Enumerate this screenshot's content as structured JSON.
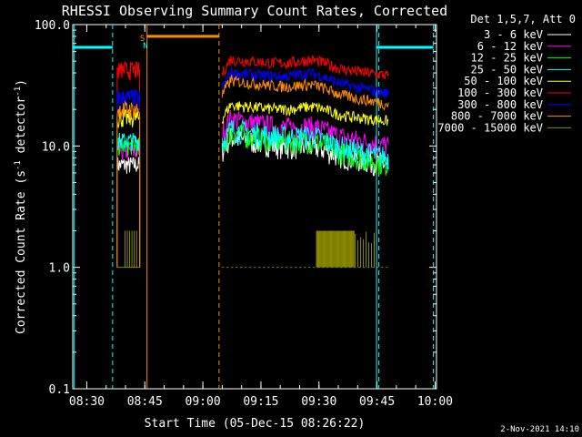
{
  "chart_data": {
    "type": "line",
    "title": "RHESSI Observing Summary Count Rates, Corrected",
    "xlabel": "Start Time (05-Dec-15 08:26:22)",
    "ylabel_main": "Corrected Count Rate (s",
    "ylabel_sup1": "-1",
    "ylabel_mid": " detector",
    "ylabel_sup2": "-1",
    "ylabel_end": ")",
    "y_scale": "log",
    "xlim_minutes": [
      0,
      94
    ],
    "ylim": [
      0.1,
      100
    ],
    "x_ticks": [
      {
        "label": "08:30",
        "min": 3.63
      },
      {
        "label": "08:45",
        "min": 18.63
      },
      {
        "label": "09:00",
        "min": 33.63
      },
      {
        "label": "09:15",
        "min": 48.63
      },
      {
        "label": "09:30",
        "min": 63.63
      },
      {
        "label": "09:45",
        "min": 78.63
      },
      {
        "label": "10:00",
        "min": 93.63
      }
    ],
    "y_ticks": [
      {
        "label": "100.0",
        "val": 100
      },
      {
        "label": "10.0",
        "val": 10
      },
      {
        "label": "1.0",
        "val": 1
      },
      {
        "label": "0.1",
        "val": 0.1
      }
    ],
    "legend_header": "Det 1,5,7, Att 0",
    "legend_position": "right",
    "series": [
      {
        "name": "3 - 6 keV",
        "color": "#ffffff",
        "level1": 7,
        "level2": [
          12,
          9,
          7
        ]
      },
      {
        "name": "6 - 12 keV",
        "color": "#ff00ff",
        "level1": 9,
        "level2": [
          17,
          13,
          10
        ]
      },
      {
        "name": "12 - 25 keV",
        "color": "#00ff00",
        "level1": 10,
        "level2": [
          13,
          10,
          7
        ]
      },
      {
        "name": "25 - 50 keV",
        "color": "#00ffff",
        "level1": 11,
        "level2": [
          14,
          11,
          8
        ]
      },
      {
        "name": "50 - 100 keV",
        "color": "#ffff00",
        "level1": 17,
        "level2": [
          22,
          19,
          16
        ]
      },
      {
        "name": "100 - 300 keV",
        "color": "#ff0000",
        "level1": 42,
        "level2": [
          52,
          46,
          38
        ]
      },
      {
        "name": "300 - 800 keV",
        "color": "#0000ff",
        "level1": 25,
        "level2": [
          40,
          36,
          27
        ]
      },
      {
        "name": "800 - 7000 keV",
        "color": "#ff8c00",
        "level1": 20,
        "level2": [
          35,
          29,
          22
        ]
      },
      {
        "name": "7000 - 15000 keV",
        "color": "#8b8b00",
        "level1": 1,
        "level2": [
          1,
          1,
          1
        ]
      }
    ],
    "segments": [
      {
        "from": 11.5,
        "to": 17.3
      },
      {
        "from": 38.6,
        "to": 81.6
      }
    ],
    "markers": [
      {
        "label": "S",
        "color": "#ff8c00",
        "min": 18.0
      },
      {
        "label": "N",
        "color": "#00ffff",
        "min": 18.8
      }
    ],
    "timestamp": "2-Nov-2021 14:10",
    "colors": {
      "background": "#000000",
      "axes": "#ffffff",
      "saa": "#00ffff",
      "night": "#ff8c00"
    }
  }
}
